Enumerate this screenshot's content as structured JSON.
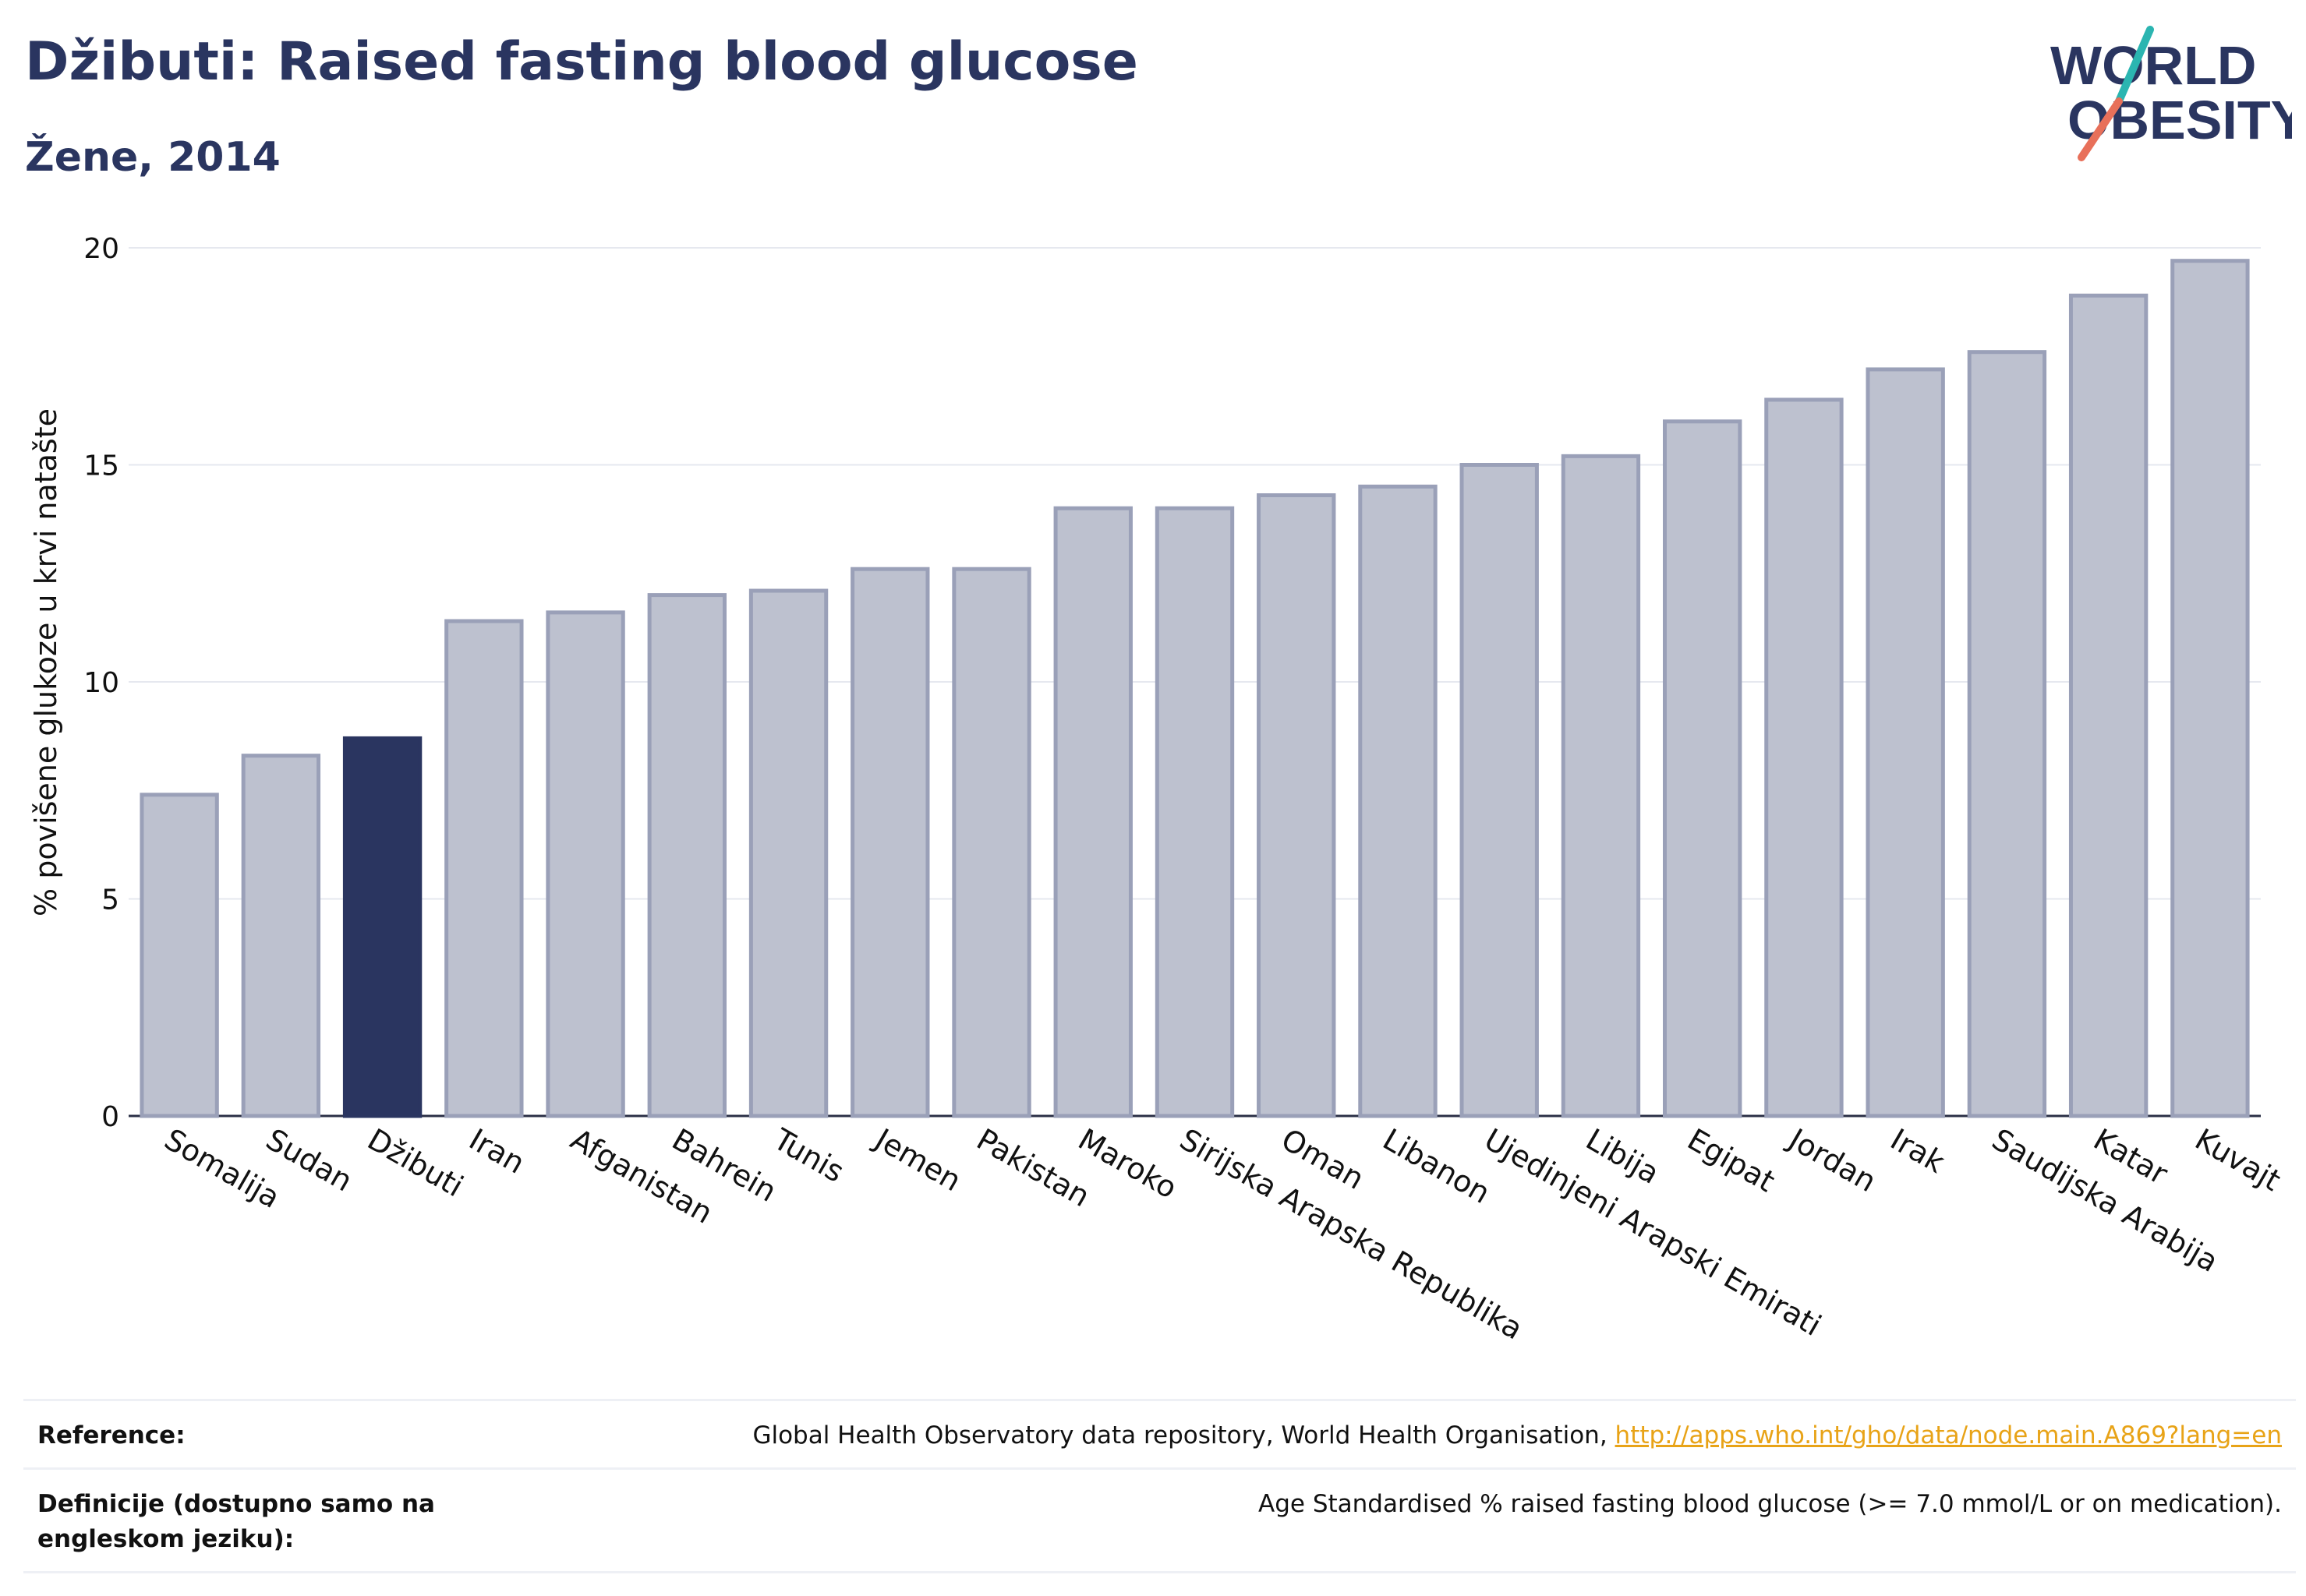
{
  "header": {
    "title": "Džibuti: Raised fasting blood glucose",
    "subtitle": "Žene, 2014"
  },
  "logo": {
    "line1": "WORLD",
    "line2": "OBESITY",
    "colors": {
      "text": "#2a3560",
      "teal": "#2bb5b1",
      "coral": "#e8705a"
    }
  },
  "chart_data": {
    "type": "bar",
    "title": "",
    "xlabel": "",
    "ylabel": "% povišene glukoze u krvi natašte",
    "ylim": [
      0,
      20
    ],
    "yticks": [
      0,
      5,
      10,
      15,
      20
    ],
    "grid": true,
    "highlight": "Džibuti",
    "colors": {
      "bar": "#bdc1cf",
      "bar_border": "#9aa0b8",
      "highlight": "#2a3560"
    },
    "categories": [
      "Somalija",
      "Sudan",
      "Džibuti",
      "Iran",
      "Afganistan",
      "Bahrein",
      "Tunis",
      "Jemen",
      "Pakistan",
      "Maroko",
      "Sirijska Arapska Republika",
      "Oman",
      "Libanon",
      "Ujedinjeni Arapski Emirati",
      "Libija",
      "Egipat",
      "Jordan",
      "Irak",
      "Saudijska Arabija",
      "Katar",
      "Kuvajt"
    ],
    "values": [
      7.4,
      8.3,
      8.7,
      11.4,
      11.6,
      12.0,
      12.1,
      12.6,
      12.6,
      14.0,
      14.0,
      14.3,
      14.5,
      15.0,
      15.2,
      16.0,
      16.5,
      17.2,
      17.6,
      18.9,
      19.7
    ]
  },
  "footer": {
    "reference_label": "Reference:",
    "reference_text": "Global Health Observatory data repository, World Health Organisation,",
    "reference_link": "http://apps.who.int/gho/data/node.main.A869?lang=en",
    "definition_label": "Definicije (dostupno samo na engleskom jeziku):",
    "definition_text": "Age Standardised % raised fasting blood glucose (>= 7.0 mmol/L or on medication)."
  }
}
